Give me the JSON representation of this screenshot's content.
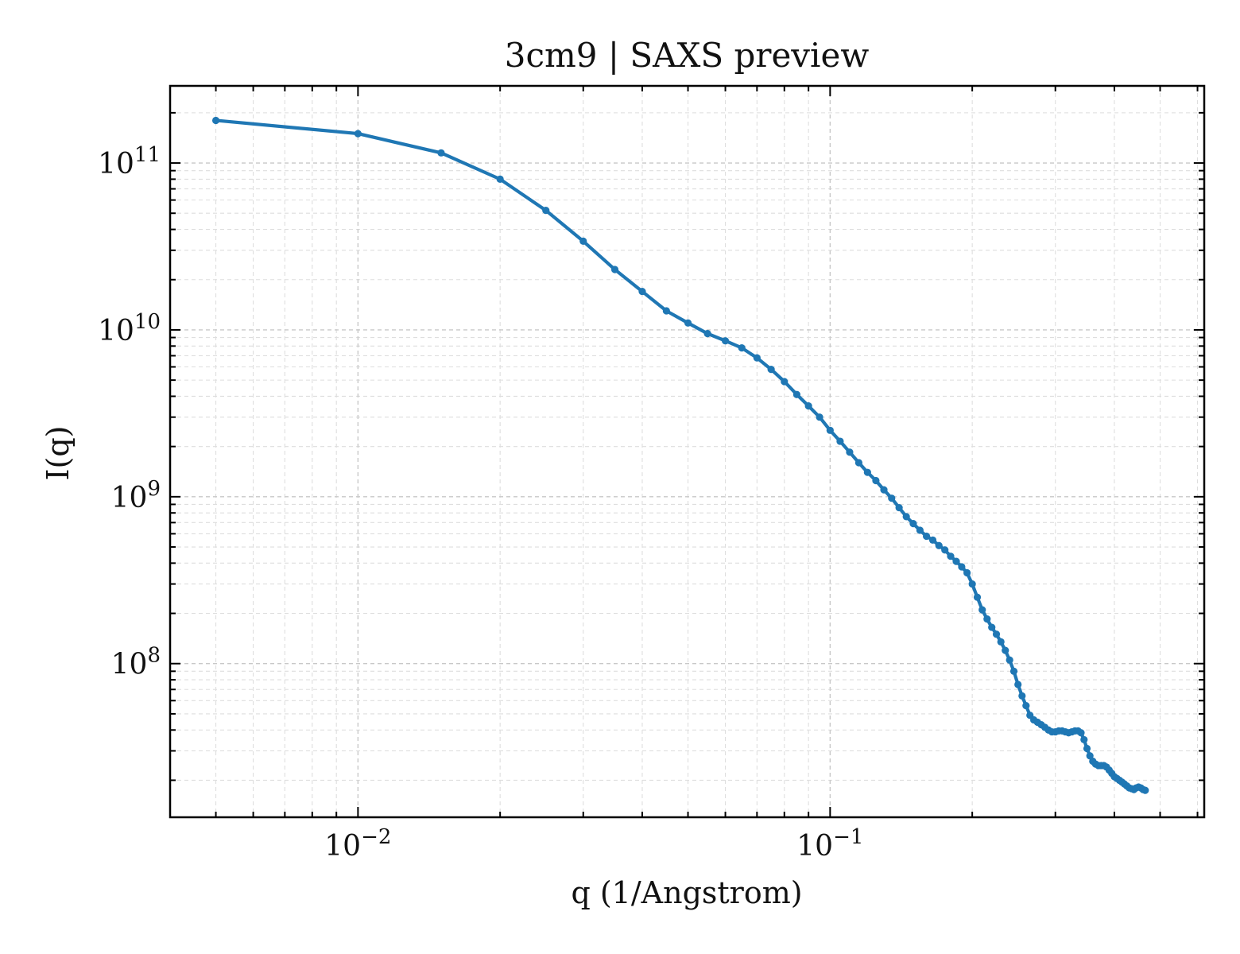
{
  "chart_data": {
    "type": "line",
    "title": "3cm9 | SAXS preview",
    "xlabel": "q (1/Angstrom)",
    "ylabel": "I(q)",
    "xscale": "log",
    "yscale": "log",
    "xlim": [
      0.004,
      0.62
    ],
    "ylim": [
      12000000,
      290000000000
    ],
    "grid": true,
    "legend": "none",
    "x_ticks": [
      {
        "value": 0.01,
        "base": "10",
        "exp": "−2"
      },
      {
        "value": 0.1,
        "base": "10",
        "exp": "−1"
      }
    ],
    "y_ticks": [
      {
        "value": 100000000,
        "base": "10",
        "exp": "8"
      },
      {
        "value": 1000000000,
        "base": "10",
        "exp": "9"
      },
      {
        "value": 10000000000,
        "base": "10",
        "exp": "10"
      },
      {
        "value": 100000000000,
        "base": "10",
        "exp": "11"
      }
    ],
    "series": [
      {
        "color": "#1f77b4",
        "points": [
          [
            0.005,
            180000000000
          ],
          [
            0.01,
            150000000000
          ],
          [
            0.015,
            115000000000
          ],
          [
            0.02,
            80000000000
          ],
          [
            0.025,
            52000000000
          ],
          [
            0.03,
            34000000000
          ],
          [
            0.035,
            23000000000
          ],
          [
            0.04,
            17000000000
          ],
          [
            0.045,
            13000000000
          ],
          [
            0.05,
            11000000000
          ],
          [
            0.055,
            9500000000
          ],
          [
            0.06,
            8600000000
          ],
          [
            0.065,
            7800000000
          ],
          [
            0.07,
            6800000000
          ],
          [
            0.075,
            5800000000
          ],
          [
            0.08,
            4900000000
          ],
          [
            0.085,
            4100000000
          ],
          [
            0.09,
            3500000000
          ],
          [
            0.095,
            3000000000
          ],
          [
            0.1,
            2500000000
          ],
          [
            0.105,
            2150000000
          ],
          [
            0.11,
            1850000000
          ],
          [
            0.115,
            1600000000
          ],
          [
            0.12,
            1400000000
          ],
          [
            0.125,
            1250000000
          ],
          [
            0.13,
            1100000000
          ],
          [
            0.135,
            980000000
          ],
          [
            0.14,
            860000000
          ],
          [
            0.145,
            760000000
          ],
          [
            0.15,
            690000000
          ],
          [
            0.155,
            630000000
          ],
          [
            0.16,
            580000000
          ],
          [
            0.165,
            550000000
          ],
          [
            0.17,
            510000000
          ],
          [
            0.175,
            480000000
          ],
          [
            0.18,
            440000000
          ],
          [
            0.185,
            410000000
          ],
          [
            0.19,
            380000000
          ],
          [
            0.195,
            350000000
          ],
          [
            0.2,
            300000000
          ],
          [
            0.205,
            250000000
          ],
          [
            0.21,
            210000000
          ],
          [
            0.215,
            185000000
          ],
          [
            0.22,
            165000000
          ],
          [
            0.225,
            150000000
          ],
          [
            0.23,
            135000000
          ],
          [
            0.235,
            120000000
          ],
          [
            0.24,
            105000000
          ],
          [
            0.245,
            90000000
          ],
          [
            0.25,
            75000000
          ],
          [
            0.255,
            64000000
          ],
          [
            0.26,
            56000000
          ],
          [
            0.265,
            49000000
          ],
          [
            0.27,
            46000000
          ],
          [
            0.275,
            44500000
          ],
          [
            0.28,
            43000000
          ],
          [
            0.285,
            41500000
          ],
          [
            0.29,
            40000000
          ],
          [
            0.295,
            39000000
          ],
          [
            0.3,
            39000000
          ],
          [
            0.305,
            39500000
          ],
          [
            0.31,
            39500000
          ],
          [
            0.315,
            39000000
          ],
          [
            0.32,
            38500000
          ],
          [
            0.325,
            39000000
          ],
          [
            0.33,
            39500000
          ],
          [
            0.335,
            39500000
          ],
          [
            0.34,
            38500000
          ],
          [
            0.345,
            35000000
          ],
          [
            0.35,
            31000000
          ],
          [
            0.355,
            28000000
          ],
          [
            0.36,
            26000000
          ],
          [
            0.365,
            25000000
          ],
          [
            0.37,
            24500000
          ],
          [
            0.375,
            24500000
          ],
          [
            0.38,
            24500000
          ],
          [
            0.385,
            24000000
          ],
          [
            0.39,
            23000000
          ],
          [
            0.395,
            22000000
          ],
          [
            0.4,
            21000000
          ],
          [
            0.405,
            20500000
          ],
          [
            0.41,
            20000000
          ],
          [
            0.415,
            19500000
          ],
          [
            0.42,
            19000000
          ],
          [
            0.425,
            18500000
          ],
          [
            0.43,
            18000000
          ],
          [
            0.435,
            17800000
          ],
          [
            0.44,
            17600000
          ],
          [
            0.445,
            18000000
          ],
          [
            0.45,
            18200000
          ],
          [
            0.455,
            18000000
          ],
          [
            0.46,
            17600000
          ],
          [
            0.465,
            17400000
          ]
        ]
      }
    ]
  }
}
